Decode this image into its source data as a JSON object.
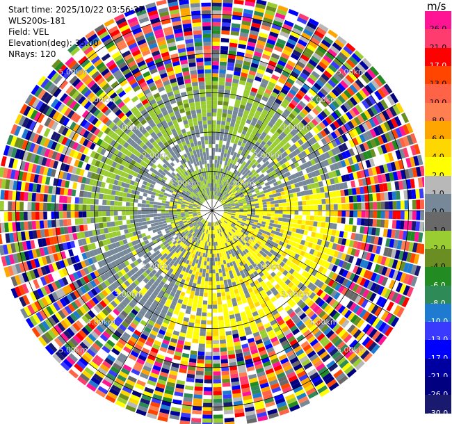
{
  "info": {
    "start_time": "Start time: 2025/10/22 03:56:27",
    "instrument": "WLS200s-181",
    "field": "Field: VEL",
    "elevation": "Elevation(deg): 35.00",
    "nrays": "NRays: 120"
  },
  "colorbar": {
    "unit": "m/s",
    "levels": [
      {
        "label": "26.0",
        "color": "#ff1493"
      },
      {
        "label": "21.0",
        "color": "#ff3c6e"
      },
      {
        "label": "17.0",
        "color": "#ff0000"
      },
      {
        "label": "13.0",
        "color": "#ff4500"
      },
      {
        "label": "10.0",
        "color": "#ff6347"
      },
      {
        "label": "8.0",
        "color": "#ff7f50"
      },
      {
        "label": "6.0",
        "color": "#ffa500"
      },
      {
        "label": "4.0",
        "color": "#ffd700"
      },
      {
        "label": "2.0",
        "color": "#ffff00"
      },
      {
        "label": "1.0",
        "color": "#b8b8b8"
      },
      {
        "label": "0.0",
        "color": "#778899"
      },
      {
        "label": "-1.0",
        "color": "#696969"
      },
      {
        "label": "-2.0",
        "color": "#9acd32"
      },
      {
        "label": "-4.0",
        "color": "#6b8e23"
      },
      {
        "label": "-6.0",
        "color": "#228b22"
      },
      {
        "label": "-8.0",
        "color": "#2e8b57"
      },
      {
        "label": "-10.0",
        "color": "#1e7bd0"
      },
      {
        "label": "-13.0",
        "color": "#3a3aff"
      },
      {
        "label": "-17.0",
        "color": "#0000ff"
      },
      {
        "label": "-21.0",
        "color": "#0000a0"
      },
      {
        "label": "-26.0",
        "color": "#000080"
      },
      {
        "label": "-30.0",
        "color": "#191970"
      }
    ]
  },
  "chart_data": {
    "type": "heatmap",
    "projection": "polar-ppi",
    "field": "VEL",
    "unit": "m/s",
    "nrays": 120,
    "range_rings_km": [
      1,
      2,
      3,
      4,
      5
    ],
    "ring_labels": [
      "1.00km",
      "2.00km",
      "3.00km",
      "4.00km",
      "5.00km"
    ],
    "max_range_km": 5.4,
    "grid": true,
    "pattern": {
      "inner_km": 0.3,
      "speckle_start_km": 3.1,
      "description_zones": [
        {
          "range_km": [
            0.0,
            1.0
          ],
          "dominant": "mixed -2.0 / 2.0 / 0.0"
        },
        {
          "range_km": [
            1.0,
            2.0
          ],
          "dominant": "2.0 (east/south), 0.0 (north/west)"
        },
        {
          "range_km": [
            2.0,
            3.0
          ],
          "dominant": "-2.0 (north-west), 2.0 (south-east), 0.0 elsewhere"
        },
        {
          "range_km": [
            3.0,
            5.4
          ],
          "dominant": "noise across full scale"
        }
      ]
    }
  }
}
